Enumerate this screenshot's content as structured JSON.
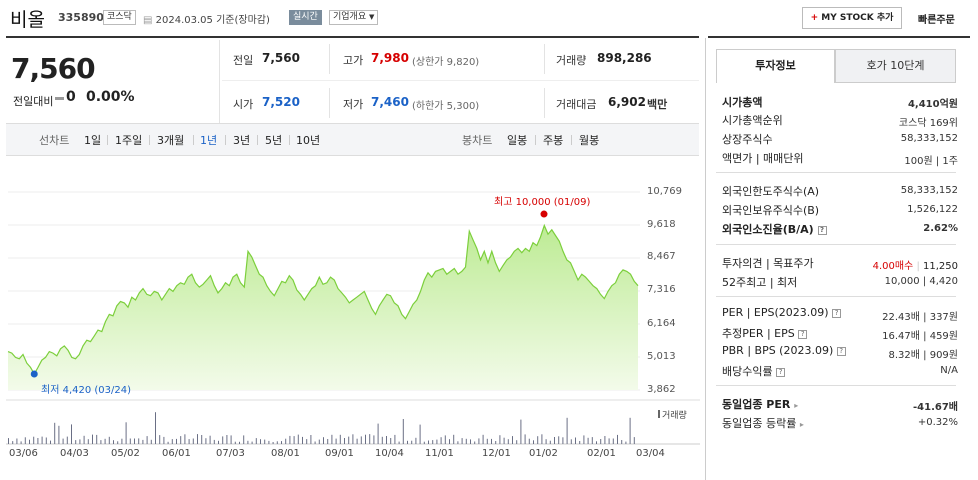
{
  "header": {
    "stock_name": "비올",
    "stock_code": "335890",
    "market": "코스닥",
    "date": "2024.03.05 기준(장마감)",
    "realtime": "실시간",
    "company_overview": "기업개요",
    "mystock_button": "MY STOCK 추가",
    "quick_order": "빠른주문"
  },
  "price": {
    "current": "7,560",
    "change_label": "전일대비",
    "change_value": "0",
    "change_pct": "0.00%"
  },
  "quote": {
    "prev_label": "전일",
    "prev": "7,560",
    "high_label": "고가",
    "high": "7,980",
    "upper_limit": "(상한가 9,820)",
    "volume_label": "거래량",
    "volume": "898,286",
    "open_label": "시가",
    "open": "7,520",
    "low_label": "저가",
    "low": "7,460",
    "lower_limit": "(하한가 5,300)",
    "amount_label": "거래대금",
    "amount": "6,902",
    "amount_unit": "백만"
  },
  "periods": {
    "line_label": "선차트",
    "line_items": [
      "1일",
      "1주일",
      "3개월",
      "1년",
      "3년",
      "5년",
      "10년"
    ],
    "selected": "1년",
    "candle_label": "봉차트",
    "candle_items": [
      "일봉",
      "주봉",
      "월봉"
    ]
  },
  "chart_data": {
    "type": "area",
    "y_ticks": [
      "10,769",
      "9,618",
      "8,467",
      "7,316",
      "6,164",
      "5,013",
      "3,862"
    ],
    "ylim": [
      3862,
      10769
    ],
    "x_ticks": [
      "03/06",
      "04/03",
      "05/02",
      "06/01",
      "07/03",
      "08/01",
      "09/01",
      "10/04",
      "11/01",
      "12/01",
      "01/02",
      "02/01",
      "03/04"
    ],
    "series": [
      {
        "values": [
          5200,
          5150,
          5000,
          4950,
          5100,
          4800,
          4650,
          4420,
          4650,
          4900,
          5000,
          5200,
          5150,
          5050,
          5300,
          5400,
          5250,
          5000,
          4950,
          5100,
          5400,
          5600,
          5550,
          5750,
          5950,
          5900,
          6250,
          6500,
          6450,
          6800,
          6950,
          6900,
          6750,
          7100,
          7000,
          7250,
          7400,
          7200,
          7150,
          7300,
          7250,
          7000,
          7200,
          7400,
          7300,
          7500,
          7600,
          7550,
          7800,
          7900,
          7600,
          7450,
          7550,
          7700,
          7850,
          7500,
          7250,
          7400,
          7600,
          7500,
          7800,
          7900,
          7600,
          7450,
          8700,
          8500,
          8200,
          7900,
          7800,
          7500,
          7300,
          7150,
          7400,
          7650,
          7600,
          7850,
          7700,
          7350,
          7200,
          7000,
          7200,
          7400,
          7500,
          7800,
          7550,
          7600,
          7800,
          7700,
          7400,
          7250,
          7100,
          6900,
          7000,
          7100,
          7200,
          7300,
          7000,
          6700,
          6500,
          6800,
          7000,
          7200,
          7150,
          6900,
          6800,
          6500,
          6350,
          6600,
          6850,
          7000,
          7300,
          7700,
          7950,
          7800,
          8000,
          8050,
          8100,
          7900,
          8000,
          8100,
          7900,
          8000,
          8150,
          9400,
          9100,
          8800,
          8400,
          8700,
          8300,
          8700,
          8300,
          8000,
          8200,
          8400,
          8500,
          8700,
          8800,
          8650,
          8800,
          8700,
          9000,
          8900,
          9200,
          9600,
          9300,
          9450,
          9250,
          9050,
          8700,
          8400,
          8300,
          8000,
          7700,
          7900,
          7800,
          7650,
          7500,
          7400,
          7200,
          7050,
          7300,
          7500,
          7600,
          7900,
          8050,
          8000,
          7900,
          7650,
          7500
        ]
      }
    ],
    "volume_label": "거래량",
    "annotations": {
      "high": {
        "label": "최고 10,000 (01/09)",
        "value": 10000
      },
      "low": {
        "label": "최저 4,420 (03/24)",
        "value": 4420
      }
    }
  },
  "invest_info": {
    "tab_active": "투자정보",
    "tab_other": "호가 10단계",
    "market_cap_label": "시가총액",
    "market_cap": "4,410억원",
    "cap_rank_label": "시가총액순위",
    "cap_rank": "코스닥 169위",
    "shares_label": "상장주식수",
    "shares": "58,333,152",
    "par_label": "액면가 | 매매단위",
    "par": "100원 | 1주",
    "foreign_limit_label": "외국인한도주식수(A)",
    "foreign_limit": "58,333,152",
    "foreign_hold_label": "외국인보유주식수(B)",
    "foreign_hold": "1,526,122",
    "foreign_rate_label": "외국인소진율(B/A)",
    "foreign_rate": "2.62%",
    "opinion_label": "투자의견 | 목표주가",
    "opinion_rating": "4.00매수",
    "opinion_target": "11,250",
    "week52_label": "52주최고 | 최저",
    "week52": "10,000 | 4,420",
    "per_label": "PER | EPS(2023.09)",
    "per": "22.43배 | 337원",
    "est_per_label": "추정PER | EPS",
    "est_per": "16.47배 | 459원",
    "pbr_label": "PBR | BPS (2023.09)",
    "pbr": "8.32배 | 909원",
    "dividend_label": "배당수익률",
    "dividend": "N/A",
    "sector_per_label": "동일업종 PER",
    "sector_per": "-41.67배",
    "sector_rate_label": "동일업종 등락률",
    "sector_rate": "+0.32%"
  },
  "colors": {
    "up": "#d60000",
    "down": "#1b62c7",
    "area_fill": "#c9f0a8",
    "area_line": "#7ccf3c"
  }
}
